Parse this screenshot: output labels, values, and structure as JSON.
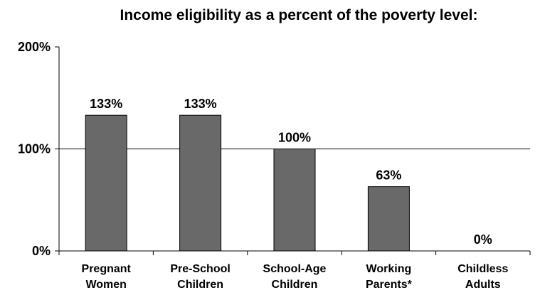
{
  "chart_data": {
    "type": "bar",
    "title": "Income eligibility as a percent of the poverty level:",
    "categories": [
      [
        "Pregnant",
        "Women"
      ],
      [
        "Pre-School",
        "Children"
      ],
      [
        "School-Age",
        "Children"
      ],
      [
        "Working",
        "Parents*"
      ],
      [
        "Childless",
        "Adults"
      ]
    ],
    "values": [
      133,
      133,
      100,
      63,
      0
    ],
    "data_labels": [
      "133%",
      "133%",
      "100%",
      "63%",
      "0%"
    ],
    "ylim": [
      0,
      200
    ],
    "yticks": [
      0,
      100,
      200
    ],
    "ytick_labels": [
      "0%",
      "100%",
      "200%"
    ],
    "grid": "horizontal at 100%",
    "colors": {
      "bar": "#696969",
      "bar_border": "#000000",
      "axis": "#000000"
    }
  }
}
